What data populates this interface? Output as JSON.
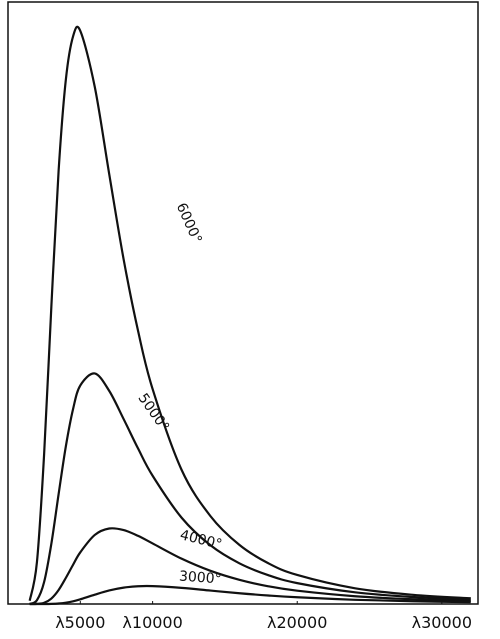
{
  "chart_data": {
    "type": "line",
    "x": [
      1500,
      2000,
      2500,
      3000,
      3500,
      4000,
      4500,
      5000,
      6000,
      7000,
      8000,
      9000,
      10000,
      12000,
      14000,
      16000,
      18000,
      20000,
      24000,
      28000,
      32000
    ],
    "series": [
      {
        "name": "6000°",
        "color": "#111111",
        "values": [
          0.54,
          6.93,
          24.98,
          49.5,
          72.0,
          87.1,
          94.3,
          95.2,
          85.9,
          71.4,
          57.2,
          45.3,
          35.7,
          22.3,
          14.6,
          9.82,
          6.77,
          4.82,
          2.61,
          1.53,
          0.95
        ]
      },
      {
        "name": "5000°",
        "color": "#111111",
        "values": [
          0.02,
          0.63,
          3.67,
          10.04,
          18.26,
          26.2,
          32.4,
          36.3,
          38.3,
          35.4,
          30.7,
          25.8,
          21.3,
          14.35,
          9.75,
          6.76,
          4.79,
          3.47,
          1.94,
          1.16,
          0.73
        ]
      },
      {
        "name": "4000°",
        "color": "#111111",
        "values": [
          0,
          0.02,
          0.21,
          0.91,
          2.33,
          4.34,
          6.52,
          8.59,
          11.47,
          12.54,
          12.28,
          11.31,
          10.06,
          7.53,
          5.51,
          4.02,
          2.94,
          2.21,
          1.29,
          0.79,
          0.51
        ]
      },
      {
        "name": "3000°",
        "color": "#111111",
        "values": [
          0,
          0,
          0,
          0.02,
          0.08,
          0.22,
          0.45,
          0.78,
          1.55,
          2.25,
          2.72,
          2.95,
          2.97,
          2.68,
          2.23,
          1.79,
          1.41,
          1.12,
          0.7,
          0.46,
          0.31
        ]
      }
    ],
    "xlim": [
      0,
      32500
    ],
    "xticks": [
      {
        "value": 5000,
        "label": "λ5000"
      },
      {
        "value": 10000,
        "label": "λ10000"
      },
      {
        "value": 20000,
        "label": "λ20000"
      },
      {
        "value": 30000,
        "label": "λ30000"
      }
    ],
    "ylim": [
      0,
      100
    ]
  }
}
